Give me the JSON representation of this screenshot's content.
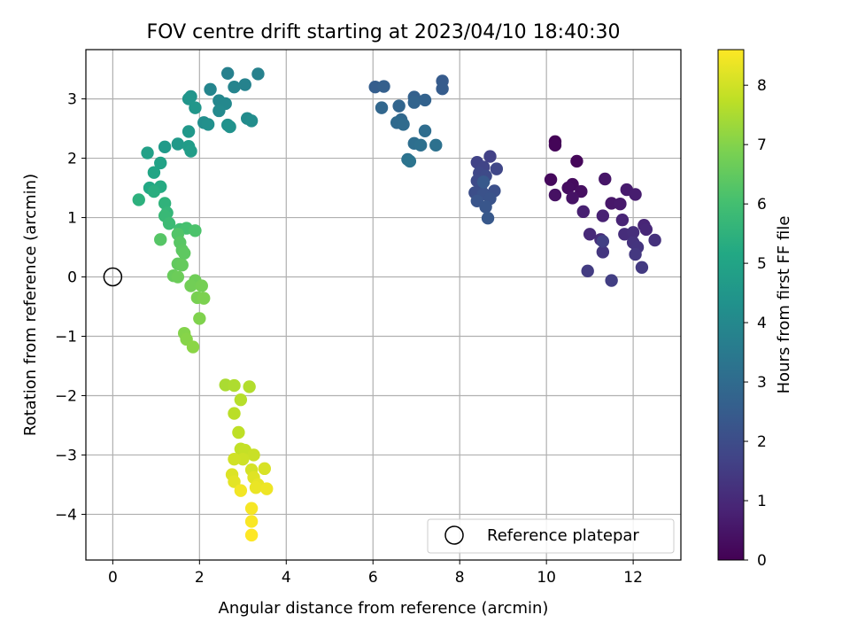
{
  "chart_data": {
    "type": "scatter",
    "title": "FOV centre drift starting at 2023/04/10 18:40:30",
    "xlabel": "Angular distance from reference (arcmin)",
    "ylabel": "Rotation from reference (arcmin)",
    "xlim": [
      -0.62,
      13.1
    ],
    "ylim": [
      -4.77,
      3.83
    ],
    "xticks": [
      0,
      2,
      4,
      6,
      8,
      10,
      12
    ],
    "yticks": [
      -4,
      -3,
      -2,
      -1,
      0,
      1,
      2,
      3
    ],
    "xtick_labels": [
      "0",
      "2",
      "4",
      "6",
      "8",
      "10",
      "12"
    ],
    "ytick_labels": [
      "−4",
      "−3",
      "−2",
      "−1",
      "0",
      "1",
      "2",
      "3"
    ],
    "grid": true,
    "colormap": "viridis",
    "colorbar": {
      "label": "Hours from first FF file",
      "range": [
        0,
        8.6
      ],
      "ticks": [
        0,
        1,
        2,
        3,
        4,
        5,
        6,
        7,
        8
      ],
      "tick_labels": [
        "0",
        "1",
        "2",
        "3",
        "4",
        "5",
        "6",
        "7",
        "8"
      ]
    },
    "legend": {
      "position": "bottom-right",
      "label": "Reference platepar"
    },
    "reference_point": {
      "x": 0,
      "y": 0
    },
    "points": [
      {
        "x": 10.2,
        "y": 2.28,
        "h": 0.05
      },
      {
        "x": 10.2,
        "y": 2.22,
        "h": 0.1
      },
      {
        "x": 10.7,
        "y": 1.95,
        "h": 0.15
      },
      {
        "x": 10.1,
        "y": 1.64,
        "h": 0.2
      },
      {
        "x": 10.6,
        "y": 1.56,
        "h": 0.25
      },
      {
        "x": 10.5,
        "y": 1.5,
        "h": 0.3
      },
      {
        "x": 10.8,
        "y": 1.44,
        "h": 0.35
      },
      {
        "x": 10.2,
        "y": 1.38,
        "h": 0.4
      },
      {
        "x": 10.6,
        "y": 1.33,
        "h": 0.45
      },
      {
        "x": 11.35,
        "y": 1.65,
        "h": 0.5
      },
      {
        "x": 11.5,
        "y": 1.24,
        "h": 0.55
      },
      {
        "x": 11.7,
        "y": 1.23,
        "h": 0.6
      },
      {
        "x": 11.85,
        "y": 1.47,
        "h": 0.65
      },
      {
        "x": 12.05,
        "y": 1.39,
        "h": 0.7
      },
      {
        "x": 10.85,
        "y": 1.1,
        "h": 0.75
      },
      {
        "x": 11.3,
        "y": 1.03,
        "h": 0.8
      },
      {
        "x": 11.75,
        "y": 0.96,
        "h": 0.85
      },
      {
        "x": 12.25,
        "y": 0.87,
        "h": 0.9
      },
      {
        "x": 12.3,
        "y": 0.8,
        "h": 0.95
      },
      {
        "x": 11.0,
        "y": 0.72,
        "h": 1.0
      },
      {
        "x": 11.25,
        "y": 0.63,
        "h": 1.05
      },
      {
        "x": 11.8,
        "y": 0.72,
        "h": 1.1
      },
      {
        "x": 12.0,
        "y": 0.75,
        "h": 1.15
      },
      {
        "x": 12.5,
        "y": 0.62,
        "h": 1.2
      },
      {
        "x": 12.0,
        "y": 0.58,
        "h": 1.25
      },
      {
        "x": 12.1,
        "y": 0.5,
        "h": 1.3
      },
      {
        "x": 11.3,
        "y": 0.42,
        "h": 1.35
      },
      {
        "x": 12.05,
        "y": 0.38,
        "h": 1.4
      },
      {
        "x": 12.2,
        "y": 0.16,
        "h": 1.45
      },
      {
        "x": 10.95,
        "y": 0.1,
        "h": 1.5
      },
      {
        "x": 11.5,
        "y": -0.06,
        "h": 1.55
      },
      {
        "x": 11.3,
        "y": 0.6,
        "h": 1.6
      },
      {
        "x": 8.7,
        "y": 2.03,
        "h": 1.65
      },
      {
        "x": 8.4,
        "y": 1.93,
        "h": 1.7
      },
      {
        "x": 8.55,
        "y": 1.85,
        "h": 1.75
      },
      {
        "x": 8.85,
        "y": 1.82,
        "h": 1.8
      },
      {
        "x": 8.45,
        "y": 1.75,
        "h": 1.85
      },
      {
        "x": 8.6,
        "y": 1.7,
        "h": 1.9
      },
      {
        "x": 8.4,
        "y": 1.62,
        "h": 1.95
      },
      {
        "x": 8.5,
        "y": 1.55,
        "h": 2.0
      },
      {
        "x": 8.35,
        "y": 1.42,
        "h": 2.05
      },
      {
        "x": 8.8,
        "y": 1.45,
        "h": 2.1
      },
      {
        "x": 8.55,
        "y": 1.4,
        "h": 2.15
      },
      {
        "x": 8.7,
        "y": 1.32,
        "h": 2.2
      },
      {
        "x": 8.4,
        "y": 1.28,
        "h": 2.25
      },
      {
        "x": 8.6,
        "y": 1.18,
        "h": 2.3
      },
      {
        "x": 8.65,
        "y": 0.99,
        "h": 2.35
      },
      {
        "x": 8.55,
        "y": 1.6,
        "h": 2.4
      },
      {
        "x": 7.6,
        "y": 3.3,
        "h": 2.45
      },
      {
        "x": 7.6,
        "y": 3.17,
        "h": 2.5
      },
      {
        "x": 6.05,
        "y": 3.2,
        "h": 2.55
      },
      {
        "x": 6.25,
        "y": 3.21,
        "h": 2.6
      },
      {
        "x": 6.95,
        "y": 3.03,
        "h": 2.65
      },
      {
        "x": 7.2,
        "y": 2.98,
        "h": 2.7
      },
      {
        "x": 6.95,
        "y": 2.94,
        "h": 2.75
      },
      {
        "x": 6.6,
        "y": 2.88,
        "h": 2.8
      },
      {
        "x": 6.2,
        "y": 2.85,
        "h": 2.85
      },
      {
        "x": 6.65,
        "y": 2.65,
        "h": 2.9
      },
      {
        "x": 6.55,
        "y": 2.6,
        "h": 2.95
      },
      {
        "x": 6.7,
        "y": 2.57,
        "h": 3.0
      },
      {
        "x": 7.2,
        "y": 2.46,
        "h": 3.05
      },
      {
        "x": 6.95,
        "y": 2.25,
        "h": 3.1
      },
      {
        "x": 7.1,
        "y": 2.22,
        "h": 3.15
      },
      {
        "x": 7.45,
        "y": 2.22,
        "h": 3.2
      },
      {
        "x": 6.8,
        "y": 1.98,
        "h": 3.25
      },
      {
        "x": 6.85,
        "y": 1.95,
        "h": 3.3
      },
      {
        "x": 2.65,
        "y": 3.43,
        "h": 3.7
      },
      {
        "x": 3.35,
        "y": 3.42,
        "h": 3.75
      },
      {
        "x": 3.05,
        "y": 3.24,
        "h": 3.8
      },
      {
        "x": 2.8,
        "y": 3.2,
        "h": 3.85
      },
      {
        "x": 2.25,
        "y": 3.16,
        "h": 3.9
      },
      {
        "x": 2.45,
        "y": 2.97,
        "h": 3.95
      },
      {
        "x": 2.6,
        "y": 2.92,
        "h": 4.0
      },
      {
        "x": 2.45,
        "y": 2.8,
        "h": 4.05
      },
      {
        "x": 3.1,
        "y": 2.67,
        "h": 4.1
      },
      {
        "x": 3.2,
        "y": 2.63,
        "h": 4.15
      },
      {
        "x": 2.1,
        "y": 2.6,
        "h": 4.2
      },
      {
        "x": 2.2,
        "y": 2.57,
        "h": 4.25
      },
      {
        "x": 2.65,
        "y": 2.56,
        "h": 4.3
      },
      {
        "x": 2.7,
        "y": 2.53,
        "h": 4.35
      },
      {
        "x": 1.8,
        "y": 3.04,
        "h": 4.4
      },
      {
        "x": 1.75,
        "y": 3.0,
        "h": 4.45
      },
      {
        "x": 1.9,
        "y": 2.85,
        "h": 4.5
      },
      {
        "x": 1.75,
        "y": 2.45,
        "h": 4.55
      },
      {
        "x": 1.5,
        "y": 2.24,
        "h": 4.6
      },
      {
        "x": 1.2,
        "y": 2.19,
        "h": 4.65
      },
      {
        "x": 1.75,
        "y": 2.2,
        "h": 4.7
      },
      {
        "x": 1.8,
        "y": 2.12,
        "h": 4.75
      },
      {
        "x": 0.8,
        "y": 2.09,
        "h": 4.85
      },
      {
        "x": 1.1,
        "y": 1.92,
        "h": 4.95
      },
      {
        "x": 0.95,
        "y": 1.76,
        "h": 5.05
      },
      {
        "x": 0.85,
        "y": 1.5,
        "h": 5.15
      },
      {
        "x": 1.1,
        "y": 1.52,
        "h": 5.25
      },
      {
        "x": 0.95,
        "y": 1.44,
        "h": 5.35
      },
      {
        "x": 0.6,
        "y": 1.3,
        "h": 5.45
      },
      {
        "x": 1.2,
        "y": 1.24,
        "h": 5.55
      },
      {
        "x": 1.25,
        "y": 1.08,
        "h": 5.65
      },
      {
        "x": 1.2,
        "y": 1.03,
        "h": 5.75
      },
      {
        "x": 1.3,
        "y": 0.9,
        "h": 5.85
      },
      {
        "x": 1.55,
        "y": 0.8,
        "h": 5.95
      },
      {
        "x": 1.7,
        "y": 0.82,
        "h": 6.05
      },
      {
        "x": 1.9,
        "y": 0.78,
        "h": 6.15
      },
      {
        "x": 1.5,
        "y": 0.72,
        "h": 6.25
      },
      {
        "x": 1.1,
        "y": 0.63,
        "h": 6.3
      },
      {
        "x": 1.55,
        "y": 0.58,
        "h": 6.35
      },
      {
        "x": 1.6,
        "y": 0.45,
        "h": 6.4
      },
      {
        "x": 1.65,
        "y": 0.4,
        "h": 6.45
      },
      {
        "x": 1.5,
        "y": 0.22,
        "h": 6.5
      },
      {
        "x": 1.6,
        "y": 0.2,
        "h": 6.55
      },
      {
        "x": 1.4,
        "y": 0.02,
        "h": 6.6
      },
      {
        "x": 1.5,
        "y": 0.0,
        "h": 6.65
      },
      {
        "x": 1.9,
        "y": -0.06,
        "h": 6.7
      },
      {
        "x": 1.8,
        "y": -0.15,
        "h": 6.75
      },
      {
        "x": 2.05,
        "y": -0.15,
        "h": 6.8
      },
      {
        "x": 1.95,
        "y": -0.35,
        "h": 6.85
      },
      {
        "x": 2.1,
        "y": -0.36,
        "h": 6.9
      },
      {
        "x": 2.0,
        "y": -0.7,
        "h": 6.95
      },
      {
        "x": 1.65,
        "y": -0.95,
        "h": 7.0
      },
      {
        "x": 1.7,
        "y": -1.05,
        "h": 7.05
      },
      {
        "x": 1.85,
        "y": -1.18,
        "h": 7.1
      },
      {
        "x": 2.6,
        "y": -1.82,
        "h": 7.5
      },
      {
        "x": 2.8,
        "y": -1.83,
        "h": 7.55
      },
      {
        "x": 3.15,
        "y": -1.85,
        "h": 7.6
      },
      {
        "x": 2.95,
        "y": -2.07,
        "h": 7.65
      },
      {
        "x": 2.8,
        "y": -2.3,
        "h": 7.7
      },
      {
        "x": 2.9,
        "y": -2.62,
        "h": 7.75
      },
      {
        "x": 2.95,
        "y": -2.9,
        "h": 7.8
      },
      {
        "x": 3.05,
        "y": -2.92,
        "h": 7.85
      },
      {
        "x": 3.25,
        "y": -3.0,
        "h": 7.9
      },
      {
        "x": 3.0,
        "y": -3.07,
        "h": 7.95
      },
      {
        "x": 2.8,
        "y": -3.07,
        "h": 8.0
      },
      {
        "x": 3.2,
        "y": -3.25,
        "h": 8.05
      },
      {
        "x": 3.5,
        "y": -3.23,
        "h": 8.1
      },
      {
        "x": 2.75,
        "y": -3.33,
        "h": 8.15
      },
      {
        "x": 3.25,
        "y": -3.38,
        "h": 8.2
      },
      {
        "x": 2.8,
        "y": -3.45,
        "h": 8.25
      },
      {
        "x": 3.35,
        "y": -3.5,
        "h": 8.3
      },
      {
        "x": 3.3,
        "y": -3.55,
        "h": 8.35
      },
      {
        "x": 3.55,
        "y": -3.57,
        "h": 8.4
      },
      {
        "x": 2.95,
        "y": -3.6,
        "h": 8.45
      },
      {
        "x": 3.2,
        "y": -3.9,
        "h": 8.5
      },
      {
        "x": 3.2,
        "y": -4.12,
        "h": 8.55
      },
      {
        "x": 3.2,
        "y": -4.35,
        "h": 8.6
      }
    ]
  }
}
